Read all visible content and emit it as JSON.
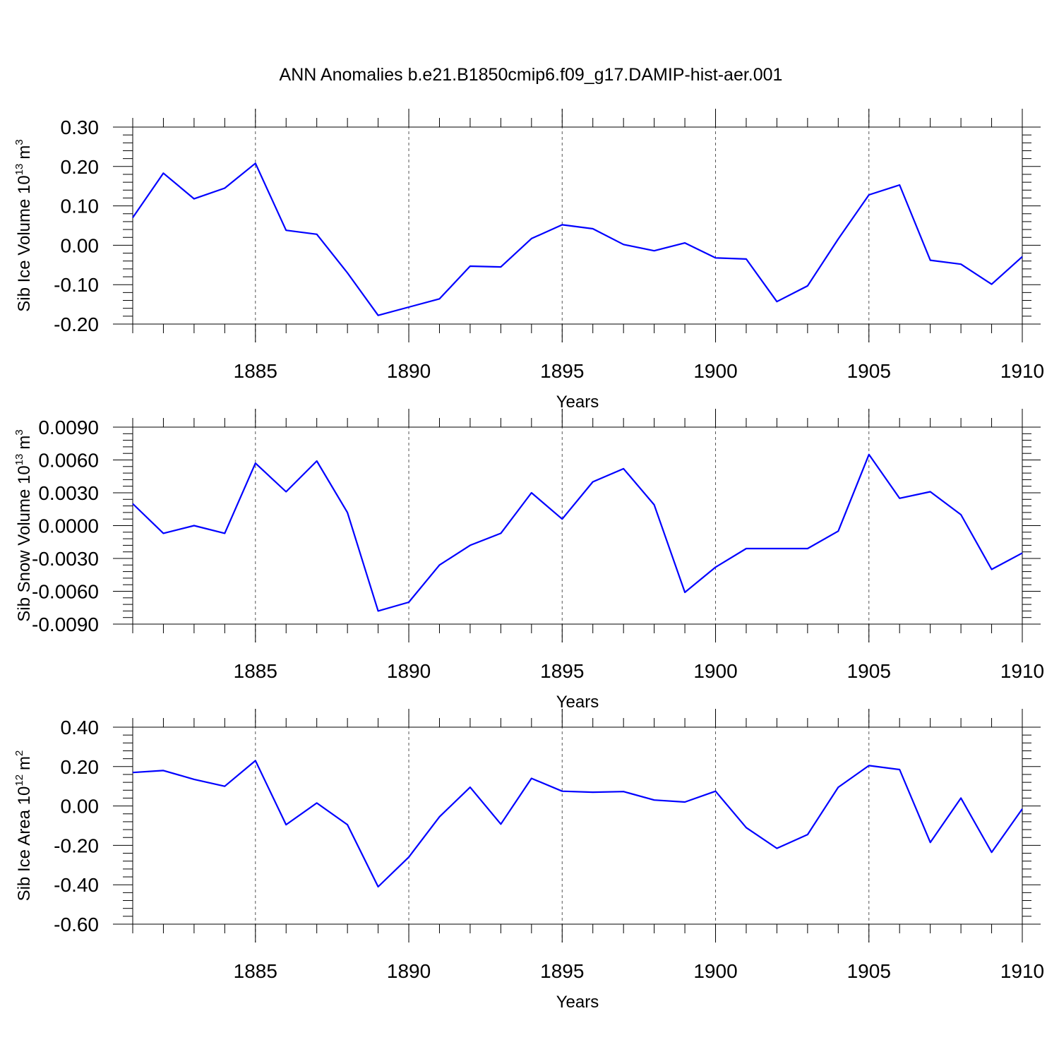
{
  "title": "ANN Anomalies b.e21.B1850cmip6.f09_g17.DAMIP-hist-aer.001",
  "colors": {
    "series": "#0000ff",
    "axes": "#000000",
    "grid": "#555555"
  },
  "chart_data": [
    {
      "type": "line",
      "ylabel": "Sib Ice Volume 10",
      "ylabel_sup": "13",
      "ylabel_unit": "m",
      "ylabel_unit_sup": "3",
      "xlabel": "Years",
      "xlim": [
        1881,
        1910
      ],
      "ylim": [
        -0.2,
        0.3
      ],
      "xticks": [
        1885,
        1890,
        1895,
        1900,
        1905,
        1910
      ],
      "yticks": [
        0.3,
        0.2,
        0.1,
        0.0,
        -0.1,
        -0.2
      ],
      "ytick_labels": [
        "0.30",
        "0.20",
        "0.10",
        "0.00",
        "-0.10",
        "-0.20"
      ],
      "grid_x": true,
      "series": [
        {
          "x": [
            1881,
            1882,
            1883,
            1884,
            1885,
            1886,
            1887,
            1888,
            1889,
            1890,
            1891,
            1892,
            1893,
            1894,
            1895,
            1896,
            1897,
            1898,
            1899,
            1900,
            1901,
            1902,
            1903,
            1904,
            1905,
            1906,
            1907,
            1908,
            1909,
            1910
          ],
          "values": [
            0.07,
            0.183,
            0.118,
            0.145,
            0.208,
            0.038,
            0.028,
            -0.07,
            -0.178,
            -0.157,
            -0.136,
            -0.053,
            -0.055,
            0.017,
            0.052,
            0.042,
            0.002,
            -0.014,
            0.006,
            -0.032,
            -0.035,
            -0.143,
            -0.103,
            0.016,
            0.128,
            0.153,
            -0.038,
            -0.048,
            -0.099,
            -0.029
          ]
        }
      ]
    },
    {
      "type": "line",
      "ylabel": "Sib Snow Volume 10",
      "ylabel_sup": "13",
      "ylabel_unit": "m",
      "ylabel_unit_sup": "3",
      "xlabel": "Years",
      "xlim": [
        1881,
        1910
      ],
      "ylim": [
        -0.009,
        0.009
      ],
      "xticks": [
        1885,
        1890,
        1895,
        1900,
        1905,
        1910
      ],
      "yticks": [
        0.009,
        0.006,
        0.003,
        0.0,
        -0.003,
        -0.006,
        -0.009
      ],
      "ytick_labels": [
        "0.0090",
        "0.0060",
        "0.0030",
        "0.0000",
        "-0.0030",
        "-0.0060",
        "-0.0090"
      ],
      "grid_x": true,
      "series": [
        {
          "x": [
            1881,
            1882,
            1883,
            1884,
            1885,
            1886,
            1887,
            1888,
            1889,
            1890,
            1891,
            1892,
            1893,
            1894,
            1895,
            1896,
            1897,
            1898,
            1899,
            1900,
            1901,
            1902,
            1903,
            1904,
            1905,
            1906,
            1907,
            1908,
            1909,
            1910
          ],
          "values": [
            0.002,
            -0.0007,
            0.0,
            -0.0007,
            0.0057,
            0.0031,
            0.0059,
            0.0012,
            -0.0078,
            -0.007,
            -0.0036,
            -0.0018,
            -0.0007,
            0.003,
            0.0006,
            0.004,
            0.0052,
            0.0019,
            -0.0061,
            -0.0038,
            -0.0021,
            -0.0021,
            -0.0021,
            -0.0005,
            0.0065,
            0.0025,
            0.0031,
            0.001,
            -0.004,
            -0.0025
          ]
        }
      ]
    },
    {
      "type": "line",
      "ylabel": "Sib Ice Area 10",
      "ylabel_sup": "12",
      "ylabel_unit": "m",
      "ylabel_unit_sup": "2",
      "xlabel": "Years",
      "xlim": [
        1881,
        1910
      ],
      "ylim": [
        -0.6,
        0.4
      ],
      "xticks": [
        1885,
        1890,
        1895,
        1900,
        1905,
        1910
      ],
      "yticks": [
        0.4,
        0.2,
        0.0,
        -0.2,
        -0.4,
        -0.6
      ],
      "ytick_labels": [
        "0.40",
        "0.20",
        "0.00",
        "-0.20",
        "-0.40",
        "-0.60"
      ],
      "grid_x": true,
      "series": [
        {
          "x": [
            1881,
            1882,
            1883,
            1884,
            1885,
            1886,
            1887,
            1888,
            1889,
            1890,
            1891,
            1892,
            1893,
            1894,
            1895,
            1896,
            1897,
            1898,
            1899,
            1900,
            1901,
            1902,
            1903,
            1904,
            1905,
            1906,
            1907,
            1908,
            1909,
            1910
          ],
          "values": [
            0.17,
            0.18,
            0.135,
            0.1,
            0.23,
            -0.095,
            0.015,
            -0.095,
            -0.41,
            -0.26,
            -0.055,
            0.095,
            -0.092,
            0.14,
            0.075,
            0.07,
            0.073,
            0.03,
            0.02,
            0.075,
            -0.11,
            -0.215,
            -0.145,
            0.095,
            0.205,
            0.185,
            -0.185,
            0.04,
            -0.235,
            -0.015
          ]
        }
      ]
    }
  ]
}
